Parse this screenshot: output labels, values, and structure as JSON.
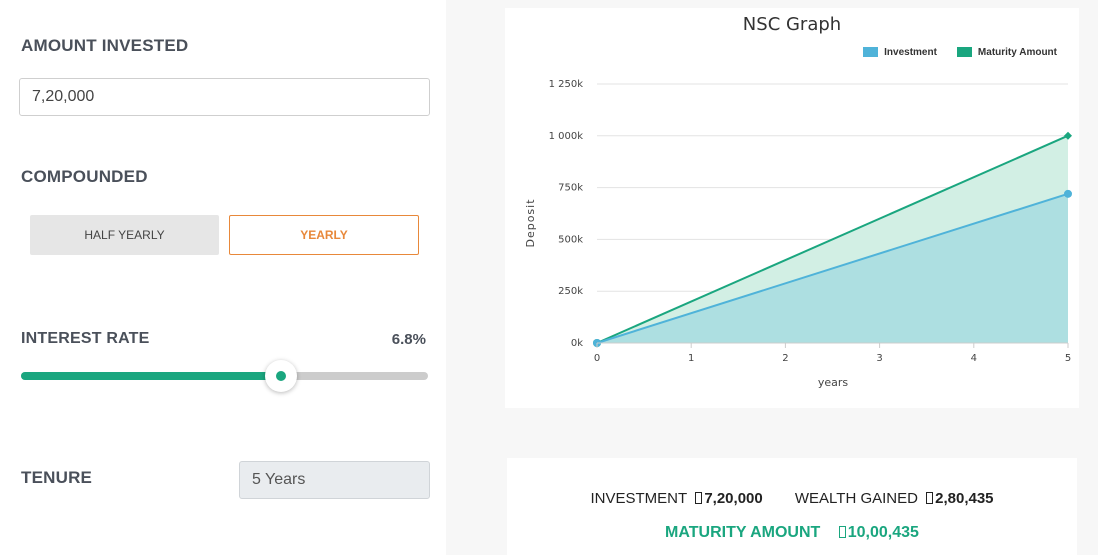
{
  "calculator": {
    "amount_label": "AMOUNT INVESTED",
    "amount_value": "7,20,000",
    "compounded_label": "COMPOUNDED",
    "options": [
      "HALF YEARLY",
      "YEARLY"
    ],
    "selected_option": "YEARLY",
    "interest_label": "INTEREST RATE",
    "interest_value": "6.8%",
    "slider_fraction": 0.64,
    "tenure_label": "TENURE",
    "tenure_value": "5 Years"
  },
  "chart_data": {
    "type": "area",
    "title": "NSC Graph",
    "xlabel": "years",
    "ylabel": "Deposit",
    "x": [
      0,
      1,
      2,
      3,
      4,
      5
    ],
    "xlim": [
      0,
      5
    ],
    "ylim": [
      0,
      1250000
    ],
    "yticks": [
      0,
      250000,
      500000,
      750000,
      1000000,
      1250000
    ],
    "ytick_labels": [
      "0k",
      "250k",
      "500k",
      "750k",
      "1 000k",
      "1 250k"
    ],
    "xtick_labels": [
      "0",
      "1",
      "2",
      "3",
      "4",
      "5"
    ],
    "grid": true,
    "legend_position": "top-right",
    "series": [
      {
        "name": "Investment",
        "points": [
          [
            0,
            0
          ],
          [
            5,
            720000
          ]
        ],
        "color": "#4fb3d9",
        "fill": "#a9dde0"
      },
      {
        "name": "Maturity Amount",
        "points": [
          [
            0,
            0
          ],
          [
            5,
            1000435
          ]
        ],
        "color": "#1aa67f",
        "fill": "#d2efe4"
      }
    ]
  },
  "summary": {
    "investment_label": "INVESTMENT",
    "investment_value": "7,20,000",
    "wealth_label": "WEALTH GAINED",
    "wealth_value": "2,80,435",
    "maturity_label": "MATURITY AMOUNT",
    "maturity_value": "10,00,435"
  },
  "colors": {
    "accent": "#1aa67f",
    "selected": "#e8883a",
    "investment": "#4fb3d9"
  }
}
